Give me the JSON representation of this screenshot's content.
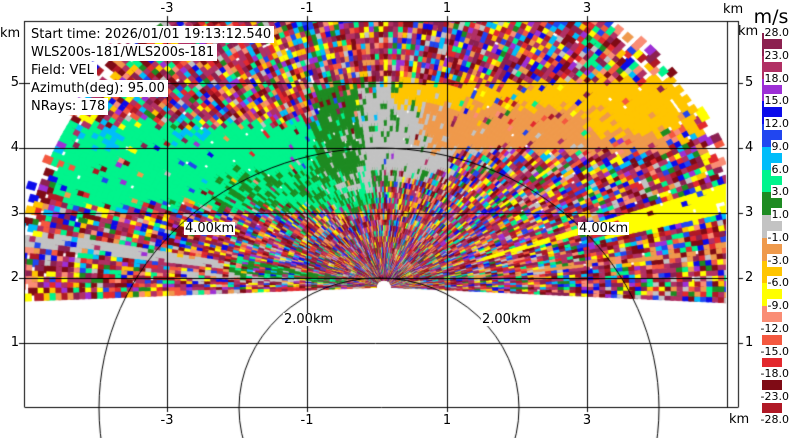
{
  "info": {
    "lines": [
      "Start time: 2026/01/01 19:13:12.540",
      "WLS200s-181/WLS200s-181",
      "Field: VEL",
      "Azimuth(deg): 95.00",
      "NRays: 178"
    ]
  },
  "axes": {
    "unit": "km",
    "x_ticks": [
      "-3",
      "-1",
      "1",
      "3"
    ],
    "y_ticks": [
      "5",
      "4",
      "3",
      "2",
      "1"
    ]
  },
  "range_rings": {
    "label_2km": "2.00km",
    "label_4km": "4.00km"
  },
  "colorbar": {
    "title": "m/s",
    "tick_labels": [
      "28.0",
      "23.0",
      "18.0",
      "15.0",
      "12.0",
      "9.0",
      "6.0",
      "3.0",
      "1.0",
      "-1.0",
      "-3.0",
      "-6.0",
      "-9.0",
      "-12.0",
      "-15.0",
      "-18.0",
      "-23.0",
      "-28.0"
    ]
  },
  "chart_data": {
    "type": "heatmap",
    "projection": "rhi-polar-fan",
    "title": "",
    "field": "VEL",
    "units": "m/s",
    "x_axis": {
      "label": "km",
      "range_km": [
        -5.05,
        5.15
      ],
      "ticks": [
        -3,
        -1,
        1,
        3
      ]
    },
    "y_axis": {
      "label": "km",
      "range_km": [
        0,
        5.95
      ],
      "ticks": [
        1,
        2,
        3,
        4,
        5
      ]
    },
    "azimuth_deg": 95.0,
    "n_rays": 178,
    "radar_origin_km": {
      "x": 0.07,
      "h": 1.86
    },
    "elevation_deg": {
      "start": -2.2,
      "end": 182.2,
      "step": 1.0
    },
    "range_km": {
      "min": 0.17,
      "max": 5.44,
      "gate": 0.085
    },
    "range_rings_km": [
      2,
      4
    ],
    "palette": [
      {
        "from": 23,
        "to": 28,
        "color": "#b01926"
      },
      {
        "from": 18,
        "to": 23,
        "color": "#7f0b15"
      },
      {
        "from": 15,
        "to": 18,
        "color": "#e3292e"
      },
      {
        "from": 12,
        "to": 15,
        "color": "#f4583f"
      },
      {
        "from": 9,
        "to": 12,
        "color": "#fa8d75"
      },
      {
        "from": 6,
        "to": 9,
        "color": "#ffff00"
      },
      {
        "from": 3,
        "to": 6,
        "color": "#ffc500"
      },
      {
        "from": 1,
        "to": 3,
        "color": "#ef9a4c"
      },
      {
        "from": -1,
        "to": 1,
        "color": "#c3c3c3"
      },
      {
        "from": -3,
        "to": -1,
        "color": "#1e8b22"
      },
      {
        "from": -6,
        "to": -3,
        "color": "#00f48c"
      },
      {
        "from": -9,
        "to": -6,
        "color": "#00bdfa"
      },
      {
        "from": -12,
        "to": -9,
        "color": "#2146f0"
      },
      {
        "from": -15,
        "to": -12,
        "color": "#0b0beb"
      },
      {
        "from": -18,
        "to": -15,
        "color": "#9d2fd6"
      },
      {
        "from": -23,
        "to": -18,
        "color": "#b13064"
      },
      {
        "from": -28,
        "to": -23,
        "color": "#8c2150"
      }
    ],
    "noise_weights": [
      1.2,
      2.0,
      1.3,
      0.9,
      0.8,
      1.3,
      0.7,
      0.8,
      0.9,
      0.7,
      1.0,
      1.1,
      1.1,
      1.0,
      0.9,
      3.2,
      2.2
    ],
    "white_fraction": 0.015,
    "features": [
      {
        "name": "west-springgreen-band",
        "type": "rect",
        "x0": -4.62,
        "x1": -0.05,
        "h0": 3.1,
        "h1": 4.38,
        "color": 10,
        "p": 0.93
      },
      {
        "name": "west-band-forest-fringe",
        "type": "rect",
        "x0": -2.35,
        "x1": -0.05,
        "h0": 3.05,
        "h1": 3.62,
        "color": 9,
        "p": 0.45
      },
      {
        "name": "west-band-skyblue-a",
        "type": "rect",
        "x0": -4.5,
        "x1": -3.7,
        "h0": 4.02,
        "h1": 4.38,
        "color": 11,
        "p": 0.5
      },
      {
        "name": "west-band-skyblue-b",
        "type": "rect",
        "x0": -2.95,
        "x1": -2.42,
        "h0": 4.1,
        "h1": 4.42,
        "color": 11,
        "p": 0.5
      },
      {
        "name": "west-band-gray-end",
        "type": "rect",
        "x0": -0.75,
        "x1": 0.12,
        "h0": 3.3,
        "h1": 4.35,
        "color": 8,
        "p": 0.55
      },
      {
        "name": "mid-forest-blob",
        "type": "rect",
        "x0": -0.95,
        "x1": 0.72,
        "h0": 3.55,
        "h1": 5.0,
        "color": 9,
        "p": 0.82
      },
      {
        "name": "mid-gray-blob",
        "type": "rect",
        "x0": -0.28,
        "x1": 1.05,
        "h0": 3.58,
        "h1": 4.97,
        "color": 8,
        "p": 0.85
      },
      {
        "name": "gray-tongue",
        "type": "rect",
        "x0": 0.95,
        "x1": 3.1,
        "h0": 3.98,
        "h1": 4.35,
        "color": 8,
        "p": 0.7
      },
      {
        "name": "east-orange-band",
        "type": "rect",
        "x0": 0.62,
        "x1": 4.1,
        "h0": 4.0,
        "h1": 4.72,
        "color": 7,
        "p": 0.88
      },
      {
        "name": "east-gold-band",
        "type": "rect",
        "x0": 0.18,
        "x1": 4.55,
        "h0": 4.66,
        "h1": 5.02,
        "color": 6,
        "p": 0.9
      },
      {
        "name": "east-gold-blob",
        "type": "rect",
        "x0": 2.95,
        "x1": 4.6,
        "h0": 4.25,
        "h1": 5.02,
        "color": 6,
        "p": 0.88
      },
      {
        "name": "east-yellow-streak-a",
        "type": "streak",
        "th0": 13.2,
        "th1": 15.8,
        "r0": 3.3,
        "r1": 5.4,
        "color": 5,
        "p": 0.92
      },
      {
        "name": "east-yellow-streak-b",
        "type": "streak",
        "th0": 16.8,
        "th1": 18.6,
        "r0": 1.4,
        "r1": 5.4,
        "color": 5,
        "p": 0.85
      },
      {
        "name": "east-orange-streak",
        "type": "streak",
        "th0": 6.3,
        "th1": 8.2,
        "r0": 1.2,
        "r1": 5.4,
        "color": 7,
        "p": 0.45
      },
      {
        "name": "west-gray-streak",
        "type": "streak",
        "th0": 170.8,
        "th1": 173.2,
        "r0": 2.3,
        "r1": 5.4,
        "color": 8,
        "p": 0.8
      },
      {
        "name": "west-low-forest-streak",
        "type": "streak",
        "th0": 168.0,
        "th1": 176.5,
        "r0": 0.55,
        "r1": 2.25,
        "color": 9,
        "p": 0.6
      },
      {
        "name": "west-low-spring-mix",
        "type": "streak",
        "th0": 168.0,
        "th1": 176.5,
        "r0": 0.55,
        "r1": 2.25,
        "color": 10,
        "p": 0.22
      },
      {
        "name": "west-low-gray-mix",
        "type": "streak",
        "th0": 174.0,
        "th1": 178.5,
        "r0": 0.55,
        "r1": 2.9,
        "color": 8,
        "p": 0.35
      }
    ]
  }
}
